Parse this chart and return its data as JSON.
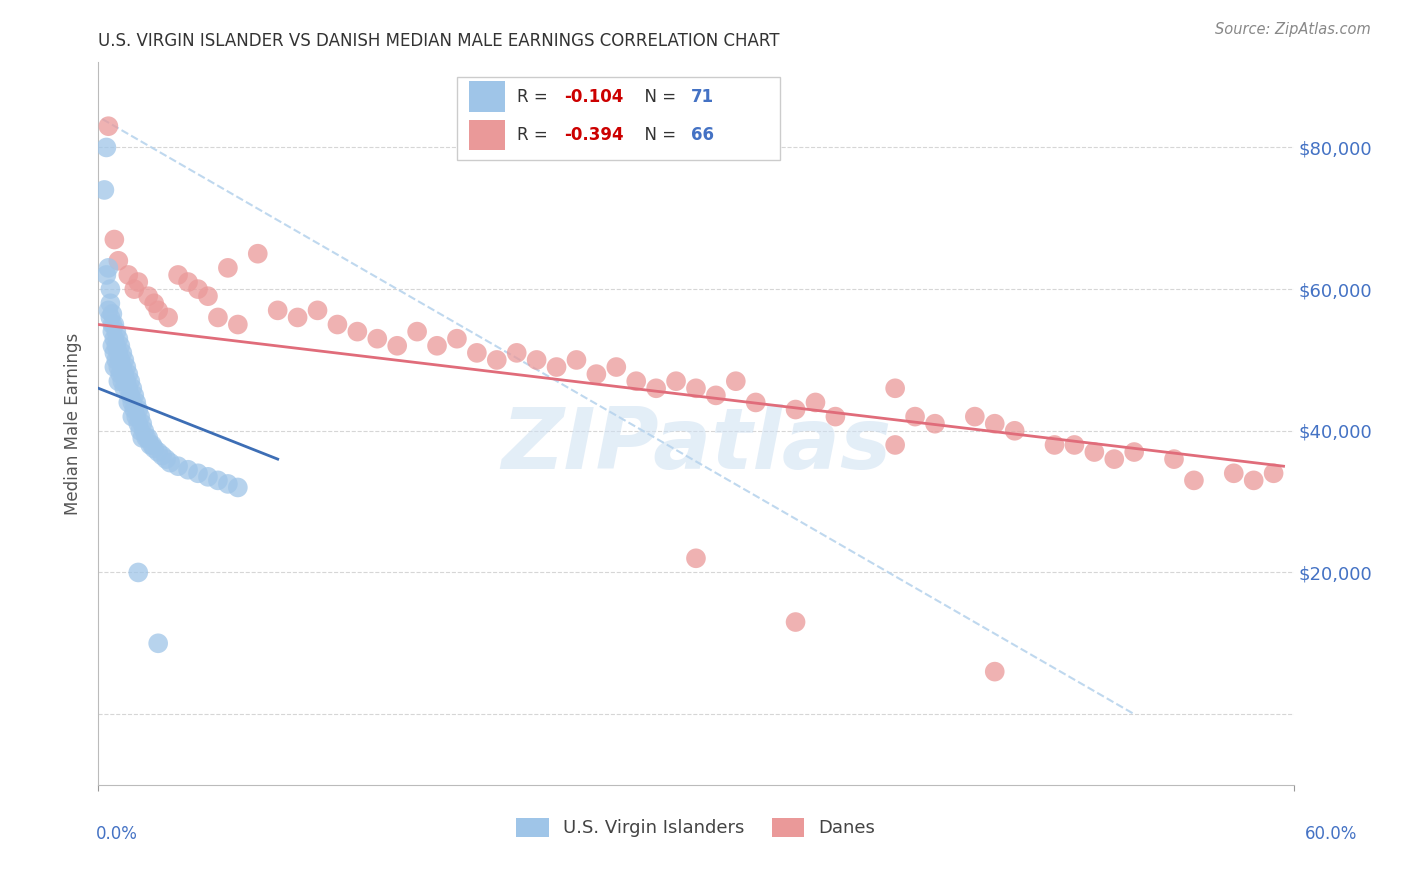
{
  "title": "U.S. VIRGIN ISLANDER VS DANISH MEDIAN MALE EARNINGS CORRELATION CHART",
  "source": "Source: ZipAtlas.com",
  "ylabel": "Median Male Earnings",
  "xlim": [
    0.0,
    0.6
  ],
  "ylim": [
    -10000,
    92000
  ],
  "legend_r_blue": "-0.104",
  "legend_n_blue": "71",
  "legend_r_pink": "-0.394",
  "legend_n_pink": "66",
  "blue_color": "#9fc5e8",
  "pink_color": "#ea9999",
  "blue_line_color": "#3d6eb5",
  "pink_line_color": "#e06c7a",
  "dashed_line_color": "#b8d4ed",
  "watermark": "ZIPatlas",
  "background_color": "#ffffff",
  "grid_color": "#cccccc",
  "blue_line_x0": 0.0,
  "blue_line_x1": 0.09,
  "blue_line_y0": 46000,
  "blue_line_y1": 36000,
  "pink_line_x0": 0.0,
  "pink_line_x1": 0.595,
  "pink_line_y0": 55000,
  "pink_line_y1": 35000,
  "dash_line_x0": 0.002,
  "dash_line_x1": 0.52,
  "dash_line_y0": 84000,
  "dash_line_y1": 0
}
